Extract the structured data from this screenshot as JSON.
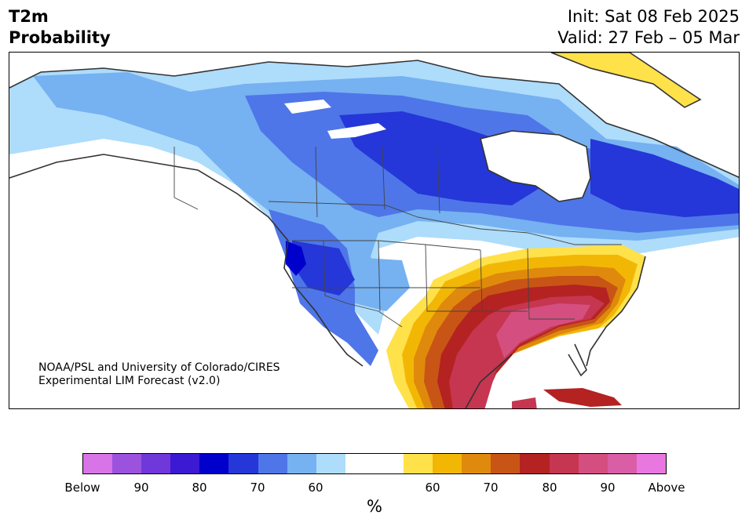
{
  "header": {
    "variable": "T2m",
    "product": "Probability",
    "init": "Init: Sat 08 Feb 2025",
    "valid": "Valid: 27 Feb – 05 Mar"
  },
  "credit": {
    "line1": "NOAA/PSL and University of Colorado/CIRES",
    "line2": "Experimental LIM Forecast (v2.0)"
  },
  "colorbar": {
    "unit": "%",
    "colors": [
      "#d873e8",
      "#9b53dd",
      "#7038da",
      "#3c19d2",
      "#0000cc",
      "#2537d8",
      "#4e76e8",
      "#76b1f1",
      "#aedcfb",
      "#ffffff",
      "#ffffff",
      "#ffe14a",
      "#f2b705",
      "#df8a0c",
      "#c85515",
      "#b42222",
      "#c63650",
      "#d44f7f",
      "#da5ea6",
      "#e878e0"
    ],
    "tick_labels": [
      "Below",
      "90",
      "80",
      "70",
      "60",
      "60",
      "70",
      "80",
      "90",
      "Above"
    ]
  },
  "map": {
    "colors": {
      "below_60": "#aedcfb",
      "below_65": "#76b1f1",
      "below_70": "#4e76e8",
      "below_75": "#2537d8",
      "below_80": "#0000cc",
      "above_60": "#ffe14a",
      "above_65": "#f2b705",
      "above_70": "#df8a0c",
      "above_75": "#c85515",
      "above_80": "#b42222",
      "above_85": "#c63650",
      "above_90": "#d44f7f",
      "coast": "#333333"
    }
  }
}
